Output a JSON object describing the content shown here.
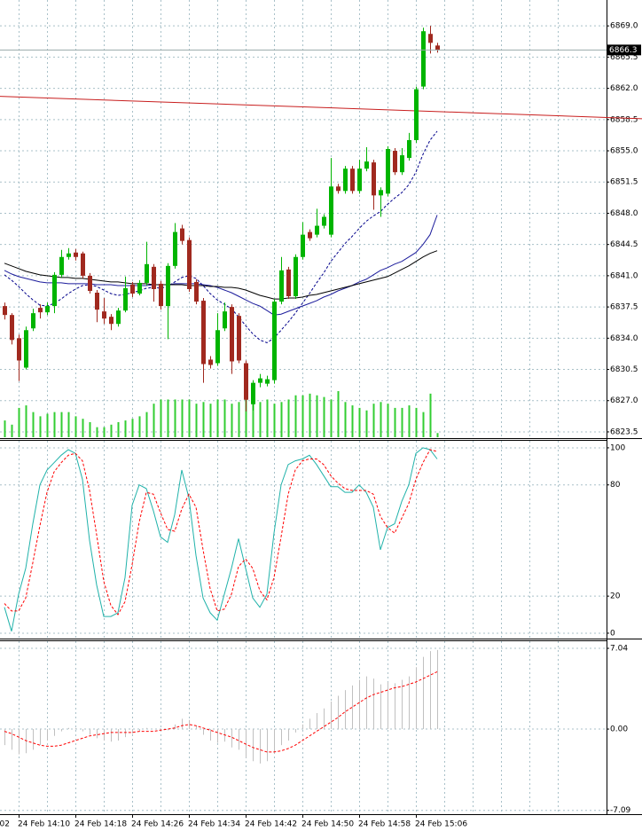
{
  "chart_data": [
    {
      "type": "candlestick",
      "categories": [
        null,
        null,
        "24 Feb 14:10",
        null,
        null,
        null,
        null,
        null,
        null,
        null,
        "24 Feb 14:18",
        null,
        null,
        null,
        null,
        null,
        null,
        null,
        "24 Feb 14:26",
        null,
        null,
        null,
        null,
        null,
        null,
        null,
        "24 Feb 14:34",
        null,
        null,
        null,
        null,
        null,
        null,
        null,
        "24 Feb 14:42",
        null,
        null,
        null,
        null,
        null,
        null,
        null,
        "24 Feb 14:50",
        null,
        null,
        null,
        null,
        null,
        null,
        null,
        "24 Feb 14:58",
        null,
        null,
        null,
        null,
        null,
        null,
        null,
        "24 Feb 15:06",
        null,
        null,
        null
      ],
      "x_label_partial": "02",
      "open": [
        6837.6,
        6836.6,
        6834.0,
        6830.7,
        6835.1,
        6837.4,
        6836.9,
        6837.6,
        6841.1,
        6843.1,
        6843.6,
        6843.5,
        6841.0,
        6839.1,
        6837.0,
        6836.4,
        6835.6,
        6837.1,
        6840.0,
        6839.0,
        6840.2,
        6842.0,
        6840.1,
        6837.6,
        6842.1,
        6846.3,
        6845.0,
        6840.3,
        6838.2,
        6831.6,
        6831.2,
        6835.1,
        6837.5,
        6836.5,
        6831.2,
        6826.6,
        6829.0,
        6828.9,
        6829.3,
        6838.1,
        6841.7,
        6838.7,
        6843.1,
        6845.9,
        6845.6,
        6846.6,
        6845.6,
        6851.0,
        6850.5,
        6853.0,
        6850.5,
        6853.0,
        6853.7,
        6850.0,
        6850.2,
        6855.0,
        6852.6,
        6854.2,
        6856.2,
        6862.2,
        6868.1,
        6866.8
      ],
      "high": [
        6838.0,
        6836.8,
        6834.4,
        6835.3,
        6837.3,
        6837.8,
        6838.0,
        6841.4,
        6843.9,
        6844.1,
        6844.0,
        6843.7,
        6841.3,
        6839.4,
        6838.5,
        6836.7,
        6837.4,
        6840.9,
        6840.3,
        6840.5,
        6844.8,
        6842.3,
        6840.4,
        6842.4,
        6846.9,
        6846.7,
        6845.3,
        6840.6,
        6838.5,
        6832.0,
        6836.8,
        6838.0,
        6837.8,
        6836.8,
        6831.5,
        6829.3,
        6830.0,
        6829.8,
        6838.4,
        6843.1,
        6842.0,
        6843.4,
        6847.0,
        6846.2,
        6848.5,
        6847.9,
        6854.2,
        6851.3,
        6853.3,
        6853.3,
        6854.0,
        6855.4,
        6854.0,
        6850.9,
        6855.5,
        6855.3,
        6855.3,
        6857.0,
        6862.2,
        6868.8,
        6869.0,
        6867.1
      ],
      "low": [
        6836.1,
        6833.3,
        6829.2,
        6830.5,
        6834.8,
        6836.2,
        6836.6,
        6836.8,
        6840.8,
        6842.8,
        6842.7,
        6840.7,
        6839.0,
        6835.8,
        6835.6,
        6834.9,
        6835.3,
        6836.9,
        6838.6,
        6838.8,
        6839.9,
        6838.1,
        6837.2,
        6833.9,
        6841.8,
        6844.5,
        6839.2,
        6837.8,
        6829.0,
        6830.6,
        6830.9,
        6834.8,
        6830.0,
        6831.2,
        6825.8,
        6825.9,
        6828.5,
        6828.6,
        6828.9,
        6837.8,
        6838.4,
        6838.4,
        6842.8,
        6844.9,
        6845.3,
        6846.3,
        6845.3,
        6850.2,
        6850.2,
        6850.2,
        6850.2,
        6852.7,
        6848.4,
        6847.6,
        6849.9,
        6852.3,
        6852.3,
        6853.9,
        6855.9,
        6861.9,
        6865.9,
        6866.0
      ],
      "close": [
        6836.6,
        6833.8,
        6831.5,
        6834.9,
        6836.8,
        6836.9,
        6837.6,
        6841.1,
        6843.1,
        6843.5,
        6843.1,
        6841.0,
        6839.3,
        6837.2,
        6836.2,
        6835.6,
        6837.1,
        6839.6,
        6839.0,
        6840.2,
        6842.3,
        6839.5,
        6837.6,
        6842.1,
        6845.9,
        6844.9,
        6839.5,
        6838.1,
        6831.1,
        6831.0,
        6834.9,
        6837.0,
        6831.4,
        6831.5,
        6827.1,
        6829.0,
        6829.5,
        6829.4,
        6838.1,
        6841.6,
        6838.7,
        6843.1,
        6845.6,
        6845.2,
        6846.6,
        6847.6,
        6851.0,
        6850.5,
        6853.0,
        6850.5,
        6853.0,
        6853.8,
        6850.0,
        6850.6,
        6855.2,
        6852.6,
        6854.5,
        6856.2,
        6861.9,
        6868.4,
        6867.1,
        6866.3
      ],
      "volume": [
        20,
        15,
        35,
        38,
        30,
        25,
        28,
        30,
        30,
        30,
        25,
        22,
        18,
        12,
        12,
        15,
        18,
        20,
        22,
        25,
        30,
        40,
        45,
        45,
        45,
        45,
        45,
        40,
        42,
        40,
        45,
        45,
        40,
        42,
        50,
        45,
        42,
        45,
        40,
        42,
        45,
        50,
        50,
        52,
        50,
        48,
        45,
        55,
        42,
        38,
        35,
        32,
        40,
        42,
        40,
        35,
        35,
        38,
        35,
        30,
        52,
        5
      ],
      "up_color": "#00b400",
      "down_color": "#a0291f",
      "volume_color": "#32cd32",
      "series": [
        {
          "color": "#00008b",
          "dashed": true,
          "values": [
            6841.1,
            6840.5,
            6839.8,
            6839.0,
            6838.3,
            6837.7,
            6837.6,
            6837.9,
            6838.4,
            6839.0,
            6839.5,
            6839.9,
            6840.0,
            6839.8,
            6839.4,
            6839.0,
            6838.8,
            6838.9,
            6839.1,
            6839.3,
            6839.6,
            6839.7,
            6839.6,
            6839.8,
            6840.3,
            6840.8,
            6841.0,
            6840.7,
            6839.9,
            6839.0,
            6838.3,
            6837.8,
            6837.3,
            6836.4,
            6835.4,
            6834.5,
            6833.8,
            6833.5,
            6834.0,
            6834.9,
            6835.8,
            6836.8,
            6837.9,
            6839.0,
            6840.2,
            6841.3,
            6842.6,
            6843.6,
            6844.6,
            6845.4,
            6846.3,
            6847.1,
            6847.7,
            6848.2,
            6849.0,
            6849.7,
            6850.3,
            6851.2,
            6852.6,
            6854.6,
            6856.2,
            6857.2
          ]
        },
        {
          "color": "#1c1c9c",
          "dashed": false,
          "values": [
            6841.6,
            6841.2,
            6840.9,
            6840.7,
            6840.5,
            6840.3,
            6840.2,
            6840.2,
            6840.2,
            6840.1,
            6840.1,
            6840.1,
            6840.1,
            6840.0,
            6840.0,
            6840.0,
            6839.9,
            6839.9,
            6839.9,
            6839.9,
            6839.9,
            6840.0,
            6840.0,
            6840.0,
            6840.1,
            6840.1,
            6840.1,
            6840.1,
            6840.0,
            6839.9,
            6839.7,
            6839.4,
            6839.1,
            6838.7,
            6838.3,
            6837.9,
            6837.6,
            6837.1,
            6836.6,
            6836.7,
            6837.0,
            6837.3,
            6837.6,
            6837.9,
            6838.2,
            6838.6,
            6838.9,
            6839.3,
            6839.6,
            6839.9,
            6840.3,
            6840.6,
            6841.1,
            6841.6,
            6841.9,
            6842.3,
            6842.6,
            6843.1,
            6843.6,
            6844.5,
            6845.6,
            6847.8
          ]
        },
        {
          "color": "#000000",
          "dashed": false,
          "values": [
            6842.4,
            6842.1,
            6841.8,
            6841.5,
            6841.3,
            6841.1,
            6841.0,
            6840.9,
            6840.8,
            6840.8,
            6840.7,
            6840.7,
            6840.6,
            6840.5,
            6840.4,
            6840.3,
            6840.3,
            6840.2,
            6840.1,
            6840.1,
            6840.1,
            6840.0,
            6840.0,
            6840.0,
            6840.0,
            6840.0,
            6839.9,
            6839.9,
            6839.9,
            6839.8,
            6839.8,
            6839.7,
            6839.7,
            6839.6,
            6839.4,
            6839.1,
            6838.8,
            6838.6,
            6838.4,
            6838.4,
            6838.5,
            6838.5,
            6838.6,
            6838.8,
            6838.9,
            6839.1,
            6839.3,
            6839.5,
            6839.7,
            6839.9,
            6840.1,
            6840.3,
            6840.5,
            6840.7,
            6840.9,
            6841.3,
            6841.7,
            6842.1,
            6842.6,
            6843.1,
            6843.5,
            6843.8
          ]
        }
      ],
      "trendline": {
        "start": 6861.1,
        "end": 6858.6,
        "color": "#c81e1e"
      },
      "current_price": 6866.3,
      "ylim": [
        6822.9,
        6871.9
      ],
      "yticks": [
        {
          "value": 6823.5,
          "label": "6823.5"
        },
        {
          "value": 6827,
          "label": "6827.0"
        },
        6830.5,
        {
          "value": 6834,
          "label": "6834.0"
        },
        6837.5,
        {
          "value": 6841,
          "label": "6841.0"
        },
        6844.5,
        {
          "value": 6848,
          "label": "6848.0"
        },
        6851.5,
        {
          "value": 6855,
          "label": "6855.0"
        },
        6858.5,
        {
          "value": 6862,
          "label": "6862.0"
        },
        6865.5,
        {
          "value": 6869,
          "label": "6869.0"
        }
      ],
      "grid": true
    },
    {
      "type": "line",
      "series": [
        {
          "color": "#20b2aa",
          "dashed": false,
          "values": [
            14,
            1,
            21,
            35,
            59,
            80,
            88,
            92,
            96,
            99,
            97,
            83,
            50,
            26,
            9,
            9,
            11,
            30,
            69,
            80,
            78,
            66,
            52,
            49,
            64,
            88,
            73,
            42,
            19,
            11,
            7,
            21,
            35,
            51,
            35,
            19,
            14,
            21,
            54,
            80,
            91,
            93,
            94,
            96,
            91,
            85,
            79,
            79,
            76,
            76,
            80,
            76,
            68,
            45,
            57,
            59,
            71,
            80,
            97,
            100,
            99,
            94
          ]
        },
        {
          "color": "#ff0000",
          "dashed": true,
          "values": [
            16,
            12,
            12,
            19,
            38,
            58,
            76,
            87,
            92,
            96,
            97,
            93,
            77,
            53,
            28,
            15,
            10,
            17,
            37,
            60,
            76,
            75,
            65,
            56,
            55,
            67,
            75,
            68,
            45,
            24,
            12,
            13,
            21,
            36,
            40,
            35,
            23,
            18,
            30,
            52,
            75,
            88,
            93,
            94,
            94,
            91,
            85,
            81,
            78,
            77,
            77,
            77,
            75,
            63,
            57,
            54,
            62,
            70,
            83,
            92,
            99,
            98
          ]
        }
      ],
      "ylim": [
        -2.9,
        103.8
      ],
      "yticks": [
        0,
        20,
        80,
        100
      ],
      "grid": true
    },
    {
      "type": "bar",
      "values": [
        -1.4,
        -1.8,
        -2.2,
        -2.1,
        -1.8,
        -1.4,
        -1.0,
        -0.6,
        -0.2,
        0.1,
        0.1,
        -0.2,
        -0.5,
        -0.8,
        -1.0,
        -1.1,
        -1.0,
        -0.7,
        -0.4,
        -0.2,
        0.1,
        0.0,
        -0.2,
        -0.1,
        0.4,
        0.9,
        0.8,
        0.3,
        -0.5,
        -1.0,
        -1.2,
        -1.1,
        -1.6,
        -1.8,
        -2.5,
        -2.8,
        -3.0,
        -2.8,
        -2.1,
        -1.4,
        -1.0,
        -0.3,
        0.4,
        0.9,
        1.4,
        1.8,
        2.4,
        2.9,
        3.4,
        3.8,
        4.3,
        4.6,
        4.4,
        3.9,
        4.1,
        4.0,
        4.3,
        4.6,
        5.4,
        6.3,
        6.8,
        6.9
      ],
      "color": "#c0c0c0",
      "series": [
        {
          "color": "#ff0000",
          "dashed": true,
          "values": [
            -0.2,
            -0.4,
            -0.7,
            -1.0,
            -1.2,
            -1.4,
            -1.5,
            -1.5,
            -1.4,
            -1.2,
            -1.0,
            -0.8,
            -0.6,
            -0.5,
            -0.4,
            -0.3,
            -0.3,
            -0.3,
            -0.3,
            -0.2,
            -0.2,
            -0.2,
            -0.1,
            0.0,
            0.1,
            0.3,
            0.4,
            0.3,
            0.1,
            -0.1,
            -0.3,
            -0.5,
            -0.7,
            -1.0,
            -1.3,
            -1.6,
            -1.8,
            -2.0,
            -2.0,
            -1.9,
            -1.7,
            -1.4,
            -1.0,
            -0.6,
            -0.2,
            0.2,
            0.6,
            1.0,
            1.5,
            1.9,
            2.3,
            2.7,
            3.0,
            3.2,
            3.4,
            3.6,
            3.7,
            3.9,
            4.1,
            4.4,
            4.7,
            5.0
          ]
        }
      ],
      "ylim": [
        -7.42,
        7.66
      ],
      "yticks": [
        -7.09,
        {
          "value": 0,
          "label": "0.00"
        },
        7.04
      ],
      "grid": true
    }
  ]
}
